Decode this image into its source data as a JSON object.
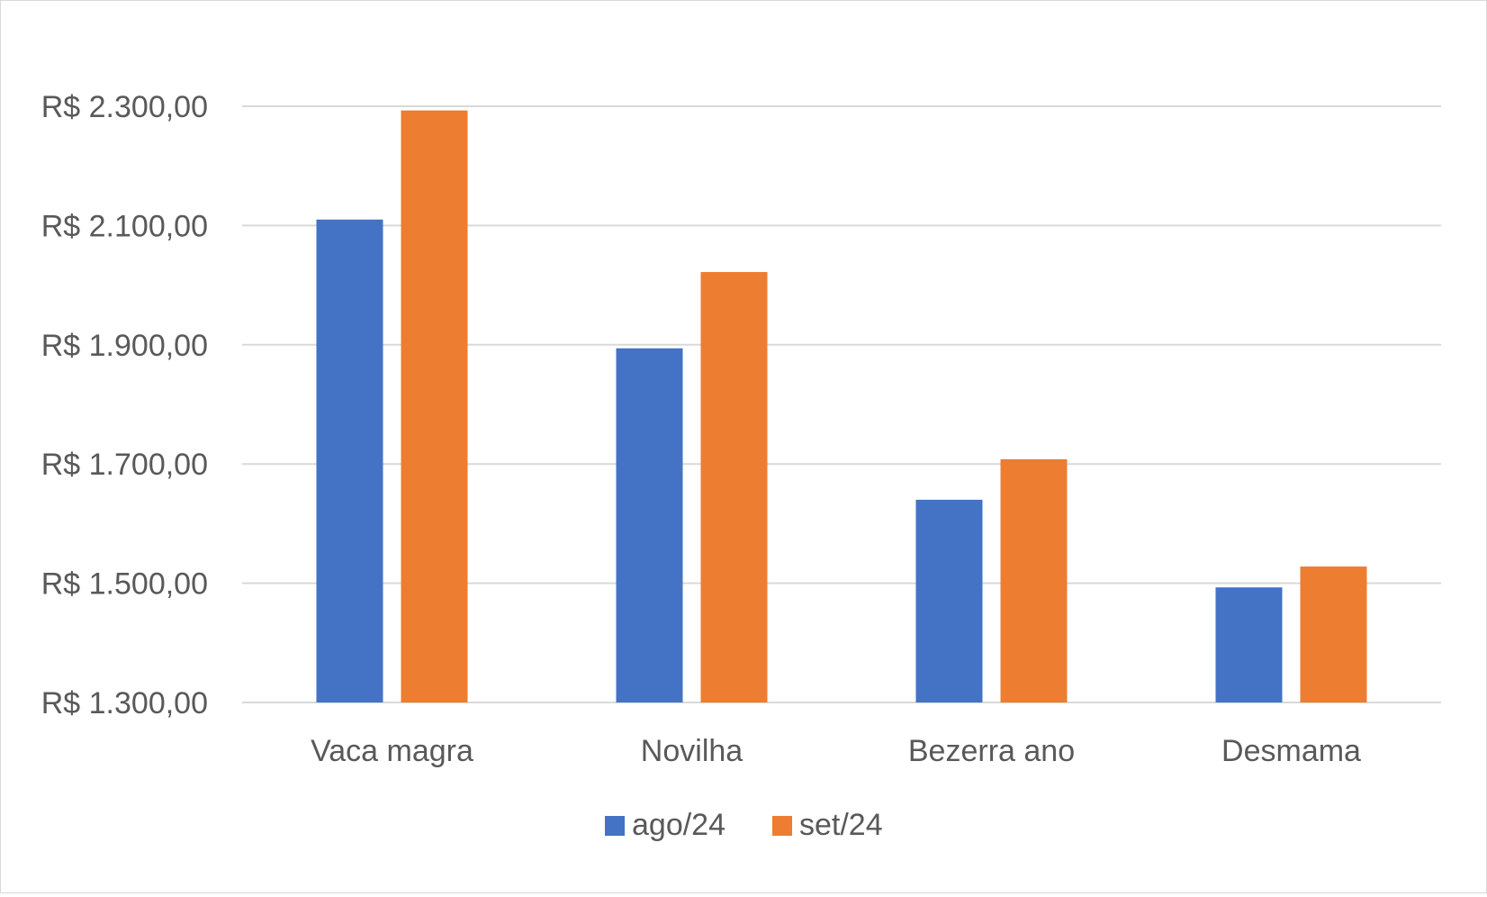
{
  "chart_data": {
    "type": "bar",
    "title": "",
    "xlabel": "",
    "ylabel": "",
    "categories": [
      "Vaca magra",
      "Novilha",
      "Bezerra ano",
      "Desmama"
    ],
    "series": [
      {
        "name": "ago/24",
        "color": "#4472C4",
        "values": [
          2110,
          1894,
          1640,
          1493
        ]
      },
      {
        "name": "set/24",
        "color": "#ED7D31",
        "values": [
          2293,
          2022,
          1708,
          1528
        ]
      }
    ],
    "ylim": [
      1300,
      2300
    ],
    "yticks": [
      1300,
      1500,
      1700,
      1900,
      2100,
      2300
    ],
    "ytick_labels": [
      "R$ 1.300,00",
      "R$ 1.500,00",
      "R$ 1.700,00",
      "R$ 1.900,00",
      "R$ 2.100,00",
      "R$ 2.300,00"
    ],
    "grid": true,
    "legend_position": "bottom"
  }
}
